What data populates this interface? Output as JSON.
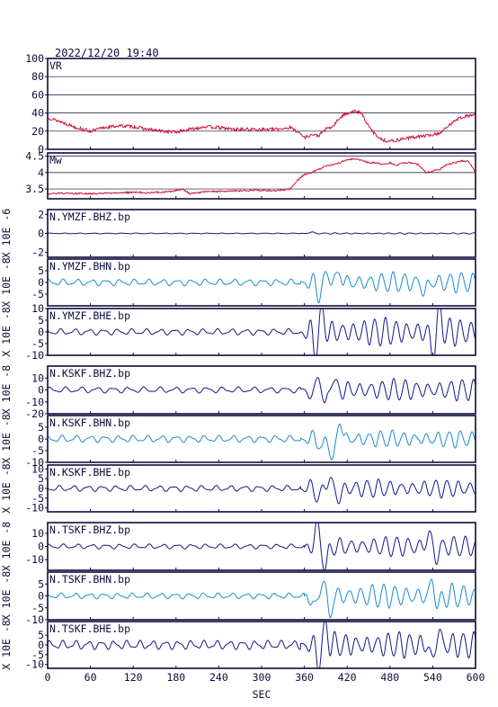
{
  "header": {
    "datetime": "2022/12/20  19:40"
  },
  "colors": {
    "vr": "#d0103a",
    "mw": "#d0103a",
    "dark": "#14148c",
    "light": "#1a8ad4",
    "frame": "#0d0d3a",
    "grid": "#0d0d3a"
  },
  "chart_data": [
    {
      "type": "line",
      "label": "VR",
      "ylim": [
        0,
        100
      ],
      "yticks": [
        0,
        20,
        40,
        60,
        80,
        100
      ],
      "grid": true,
      "x": [
        0,
        20,
        40,
        60,
        80,
        100,
        120,
        140,
        160,
        180,
        200,
        220,
        240,
        260,
        280,
        300,
        320,
        340,
        350,
        360,
        370,
        380,
        390,
        400,
        410,
        420,
        430,
        440,
        450,
        460,
        470,
        480,
        490,
        500,
        510,
        520,
        530,
        540,
        550,
        560,
        570,
        580,
        590,
        600
      ],
      "values": [
        35,
        30,
        24,
        20,
        24,
        26,
        25,
        22,
        20,
        19,
        22,
        25,
        24,
        22,
        22,
        22,
        22,
        24,
        20,
        13,
        16,
        15,
        22,
        25,
        35,
        40,
        42,
        40,
        25,
        16,
        10,
        9,
        10,
        12,
        13,
        14,
        15,
        16,
        18,
        24,
        32,
        35,
        37,
        38
      ]
    },
    {
      "type": "line",
      "label": "Mw",
      "ylim": [
        3.2,
        4.6
      ],
      "yticks": [
        3.5,
        4.0,
        4.5
      ],
      "grid": true,
      "x": [
        0,
        20,
        40,
        60,
        80,
        100,
        120,
        140,
        160,
        170,
        180,
        190,
        200,
        220,
        240,
        260,
        280,
        300,
        320,
        340,
        350,
        360,
        370,
        380,
        390,
        400,
        410,
        420,
        430,
        440,
        450,
        460,
        470,
        480,
        490,
        500,
        510,
        520,
        530,
        540,
        550,
        560,
        570,
        580,
        590,
        600
      ],
      "values": [
        3.35,
        3.37,
        3.36,
        3.35,
        3.37,
        3.38,
        3.4,
        3.38,
        3.4,
        3.42,
        3.45,
        3.48,
        3.35,
        3.42,
        3.43,
        3.44,
        3.45,
        3.46,
        3.44,
        3.5,
        3.75,
        3.95,
        4.0,
        4.1,
        4.2,
        4.25,
        4.3,
        4.4,
        4.42,
        4.38,
        4.3,
        4.3,
        4.25,
        4.3,
        4.22,
        4.3,
        4.3,
        4.25,
        4.0,
        4.05,
        4.1,
        4.25,
        4.3,
        4.35,
        4.35,
        4.0
      ]
    },
    {
      "type": "line",
      "label": "N.YMZF.BHZ.bp",
      "unit": "X 10E -6",
      "ylim": [
        -2.5,
        2.5
      ],
      "yticks": [
        -2,
        0,
        2
      ],
      "tick_labels": [
        "-2",
        "0",
        "2"
      ],
      "color": "dark",
      "pre_amp": 0.04,
      "post_amp": 0.06,
      "pre_period": 20,
      "post_period": 15,
      "onset": 355,
      "phase": 0.2,
      "peaks": [
        [
          370,
          0.15
        ]
      ]
    },
    {
      "type": "line",
      "label": "N.YMZF.BHN.bp",
      "unit": "X 10E -8",
      "ylim": [
        -10,
        10
      ],
      "yticks": [
        -5,
        0,
        5
      ],
      "tick_labels": [
        "-5",
        "0",
        "5"
      ],
      "color": "light",
      "pre_amp": 1.4,
      "post_amp": 4.2,
      "pre_period": 20,
      "post_period": 16,
      "onset": 355,
      "phase": 1.0,
      "peaks": [
        [
          380,
          -4.8
        ],
        [
          395,
          4.0
        ],
        [
          410,
          4.2
        ],
        [
          528,
          -4.5
        ]
      ]
    },
    {
      "type": "line",
      "label": "N.YMZF.BHE.bp",
      "unit": "X 10E -8",
      "ylim": [
        -10,
        10
      ],
      "yticks": [
        -10,
        -5,
        0,
        5,
        10
      ],
      "tick_labels": [
        "-10",
        "-5",
        "0",
        "5",
        "10"
      ],
      "color": "dark",
      "pre_amp": 1.3,
      "post_amp": 6.0,
      "pre_period": 20,
      "post_period": 15,
      "onset": 355,
      "phase": 2.1,
      "peaks": [
        [
          375,
          -7.5
        ],
        [
          385,
          8.0
        ],
        [
          540,
          -9.5
        ],
        [
          550,
          8.5
        ]
      ]
    },
    {
      "type": "line",
      "label": "N.KSKF.BHZ.bp",
      "unit": "X 10E -8",
      "ylim": [
        -20,
        20
      ],
      "yticks": [
        -20,
        -10,
        0,
        10
      ],
      "tick_labels": [
        "-20",
        "-10",
        "0",
        "10"
      ],
      "color": "dark",
      "pre_amp": 2.5,
      "post_amp": 9.0,
      "pre_period": 22,
      "post_period": 16,
      "onset": 355,
      "phase": 0.6,
      "peaks": [
        [
          372,
          -8.0
        ],
        [
          380,
          17.0
        ],
        [
          389,
          -19.0
        ],
        [
          398,
          12.0
        ]
      ]
    },
    {
      "type": "line",
      "label": "N.KSKF.BHN.bp",
      "unit": "X 10E -8",
      "ylim": [
        -10,
        10
      ],
      "yticks": [
        -10,
        -5,
        0,
        5
      ],
      "tick_labels": [
        "-10",
        "-5",
        "0",
        "5"
      ],
      "color": "light",
      "pre_amp": 1.5,
      "post_amp": 3.5,
      "pre_period": 20,
      "post_period": 16,
      "onset": 355,
      "phase": 1.5,
      "peaks": [
        [
          385,
          -4.5
        ],
        [
          400,
          -9.5
        ],
        [
          410,
          8.0
        ]
      ]
    },
    {
      "type": "line",
      "label": "N.KSKF.BHE.bp",
      "unit": "X 10E -8",
      "ylim": [
        -12,
        12
      ],
      "yticks": [
        -10,
        -5,
        0,
        5,
        10
      ],
      "tick_labels": [
        "-10",
        "-5",
        "0",
        "5",
        "10"
      ],
      "color": "dark",
      "pre_amp": 1.5,
      "post_amp": 4.5,
      "pre_period": 20,
      "post_period": 16,
      "onset": 355,
      "phase": 2.7,
      "peaks": [
        [
          380,
          -5.0
        ],
        [
          395,
          5.5
        ],
        [
          408,
          -6.0
        ]
      ]
    },
    {
      "type": "line",
      "label": "N.TSKF.BHZ.bp",
      "unit": "X 10E -8",
      "ylim": [
        -18,
        18
      ],
      "yticks": [
        -10,
        0,
        10
      ],
      "tick_labels": [
        "-10",
        "0",
        "10"
      ],
      "color": "dark",
      "pre_amp": 1.8,
      "post_amp": 7.5,
      "pre_period": 20,
      "post_period": 16,
      "onset": 360,
      "phase": 0.9,
      "peaks": [
        [
          378,
          15.0
        ],
        [
          390,
          -17.0
        ],
        [
          535,
          10.0
        ],
        [
          545,
          -9.0
        ]
      ]
    },
    {
      "type": "line",
      "label": "N.TSKF.BHN.bp",
      "unit": "X 10E -8",
      "ylim": [
        -10,
        10
      ],
      "yticks": [
        -10,
        -5,
        0,
        5
      ],
      "tick_labels": [
        "-10",
        "-5",
        "0",
        "5"
      ],
      "color": "light",
      "pre_amp": 1.2,
      "post_amp": 5.0,
      "pre_period": 20,
      "post_period": 16,
      "onset": 360,
      "phase": 1.9,
      "peaks": [
        [
          375,
          -7.0
        ],
        [
          385,
          8.5
        ],
        [
          395,
          -8.0
        ],
        [
          540,
          6.5
        ],
        [
          548,
          -5.5
        ]
      ]
    },
    {
      "type": "line",
      "label": "N.TSKF.BHE.bp",
      "unit": "X 10E -8",
      "ylim": [
        -12,
        12
      ],
      "yticks": [
        -10,
        -5,
        0,
        5
      ],
      "tick_labels": [
        "-10",
        "-5",
        "0",
        "5"
      ],
      "color": "dark",
      "pre_amp": 2.3,
      "post_amp": 6.5,
      "pre_period": 18,
      "post_period": 15,
      "onset": 355,
      "phase": 0.4,
      "peaks": [
        [
          380,
          -8.5
        ],
        [
          390,
          9.0
        ],
        [
          540,
          -8.5
        ],
        [
          548,
          7.5
        ]
      ]
    }
  ],
  "x_axis": {
    "ticks": [
      0,
      60,
      120,
      180,
      240,
      300,
      360,
      420,
      480,
      540,
      600
    ],
    "xlim": [
      0,
      600
    ],
    "label": "SEC"
  }
}
